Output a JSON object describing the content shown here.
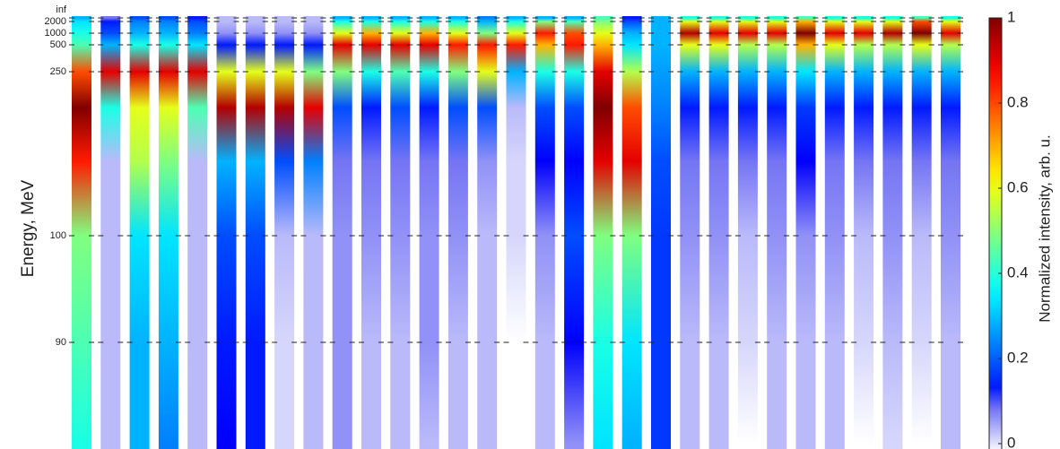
{
  "chart_data": {
    "type": "heatmap",
    "colormap": "jet",
    "y_label": "Energy, MeV",
    "y_categories": [
      "inf",
      "2000",
      "1000",
      "500",
      "250",
      null,
      null,
      "100",
      "90",
      null
    ],
    "z": [
      [
        0.3,
        0.35,
        0.4,
        0.45,
        0.8,
        1.0,
        0.85,
        0.5,
        0.45,
        0.4
      ],
      [
        0.1,
        0.15,
        0.2,
        0.3,
        0.9,
        0.4,
        0.05,
        0.05,
        0.05,
        0.05
      ],
      [
        0.2,
        0.25,
        0.3,
        0.4,
        0.9,
        0.6,
        0.55,
        0.35,
        0.3,
        0.3
      ],
      [
        0.2,
        0.25,
        0.3,
        0.4,
        0.9,
        0.6,
        0.5,
        0.35,
        0.3,
        0.25
      ],
      [
        0.15,
        0.2,
        0.25,
        0.35,
        0.9,
        0.45,
        0.05,
        0.05,
        0.05,
        0.05
      ],
      [
        0.05,
        0.05,
        0.08,
        0.15,
        0.6,
        0.95,
        0.3,
        0.2,
        0.15,
        0.12
      ],
      [
        0.05,
        0.05,
        0.08,
        0.15,
        0.6,
        0.95,
        0.3,
        0.2,
        0.15,
        0.15
      ],
      [
        0.05,
        0.05,
        0.08,
        0.15,
        0.6,
        0.95,
        0.2,
        0.05,
        0.03,
        0.03
      ],
      [
        0.05,
        0.05,
        0.08,
        0.15,
        0.5,
        0.9,
        0.25,
        0.05,
        0.05,
        0.05
      ],
      [
        0.3,
        0.4,
        0.6,
        0.9,
        0.5,
        0.2,
        0.1,
        0.08,
        0.08,
        0.08
      ],
      [
        0.3,
        0.4,
        0.7,
        0.9,
        0.4,
        0.15,
        0.1,
        0.08,
        0.05,
        0.05
      ],
      [
        0.3,
        0.4,
        0.6,
        0.9,
        0.45,
        0.2,
        0.1,
        0.08,
        0.05,
        0.05
      ],
      [
        0.3,
        0.4,
        0.7,
        0.9,
        0.4,
        0.15,
        0.1,
        0.08,
        0.08,
        0.05
      ],
      [
        0.3,
        0.4,
        0.6,
        0.85,
        0.5,
        0.2,
        0.1,
        0.08,
        0.05,
        0.05
      ],
      [
        0.25,
        0.3,
        0.5,
        0.85,
        0.6,
        0.2,
        0.08,
        0.05,
        0.05,
        0.05
      ],
      [
        0.3,
        0.4,
        0.6,
        0.85,
        0.3,
        0.05,
        0.03,
        0.03,
        0,
        0
      ],
      [
        0.3,
        0.5,
        0.85,
        0.7,
        0.4,
        0.2,
        0.12,
        0.08,
        0.05,
        0.05
      ],
      [
        0.3,
        0.45,
        0.8,
        0.85,
        0.4,
        0.2,
        0.12,
        0.2,
        0.12,
        0.08
      ],
      [
        0.45,
        0.5,
        0.6,
        0.7,
        0.9,
        1.0,
        0.9,
        0.5,
        0.4,
        0.35
      ],
      [
        0.15,
        0.2,
        0.3,
        0.35,
        0.55,
        0.8,
        0.9,
        0.5,
        0.35,
        0.3
      ],
      [
        0.3,
        0.3,
        0.3,
        0.3,
        0.28,
        0.25,
        0.2,
        0.18,
        0.18,
        0.18
      ],
      [
        0.4,
        0.6,
        0.95,
        0.6,
        0.3,
        0.15,
        0.1,
        0.08,
        0.05,
        0.05
      ],
      [
        0.4,
        0.6,
        0.9,
        0.6,
        0.3,
        0.15,
        0.1,
        0.08,
        0.05,
        0.05
      ],
      [
        0.4,
        0.6,
        0.9,
        0.55,
        0.3,
        0.15,
        0.1,
        0.05,
        0.03,
        0
      ],
      [
        0.4,
        0.6,
        0.9,
        0.55,
        0.3,
        0.15,
        0.1,
        0.08,
        0.05,
        0.05
      ],
      [
        0.45,
        0.7,
        1.0,
        0.7,
        0.35,
        0.18,
        0.12,
        0.08,
        0.05,
        0.05
      ],
      [
        0.4,
        0.6,
        0.9,
        0.6,
        0.3,
        0.15,
        0.1,
        0.08,
        0.05,
        0.05
      ],
      [
        0.4,
        0.6,
        0.9,
        0.55,
        0.3,
        0.15,
        0.1,
        0.05,
        0.03,
        0
      ],
      [
        0.4,
        0.6,
        0.95,
        0.55,
        0.3,
        0.15,
        0.1,
        0.08,
        0.05,
        0.03
      ],
      [
        0.45,
        0.8,
        1.0,
        0.6,
        0.3,
        0.15,
        0.1,
        0.05,
        0.03,
        0
      ],
      [
        0.4,
        0.6,
        0.9,
        0.55,
        0.3,
        0.15,
        0.1,
        0.08,
        0.05,
        0.05
      ]
    ],
    "colorbar": {
      "label": "Normalized intensity, arb. u.",
      "lim": [
        0,
        1
      ],
      "ticks": [
        0,
        0.2,
        0.4,
        0.6,
        0.8,
        1
      ]
    }
  }
}
